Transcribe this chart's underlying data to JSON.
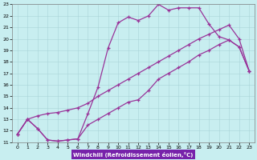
{
  "bg_color": "#c8eef0",
  "grid_color": "#a8d4d8",
  "line_color": "#993399",
  "xlabel": "Windchill (Refroidissement éolien,°C)",
  "xlabel_bg": "#7722aa",
  "xlim": [
    -0.5,
    23.5
  ],
  "ylim": [
    11,
    23
  ],
  "xticks": [
    0,
    1,
    2,
    3,
    4,
    5,
    6,
    7,
    8,
    9,
    10,
    11,
    12,
    13,
    14,
    15,
    16,
    17,
    18,
    19,
    20,
    21,
    22,
    23
  ],
  "yticks": [
    11,
    12,
    13,
    14,
    15,
    16,
    17,
    18,
    19,
    20,
    21,
    22,
    23
  ],
  "line1_x": [
    0,
    1,
    2,
    3,
    4,
    5,
    6,
    7,
    8,
    9,
    10,
    11,
    12,
    13,
    14,
    15,
    16,
    17,
    18,
    19,
    20,
    21,
    22,
    23
  ],
  "line1_y": [
    11.7,
    13.0,
    12.2,
    11.2,
    11.1,
    11.2,
    11.3,
    13.5,
    15.8,
    19.2,
    21.4,
    21.9,
    21.6,
    22.0,
    23.0,
    22.5,
    22.7,
    22.7,
    22.7,
    21.3,
    20.2,
    19.9,
    19.3,
    17.2
  ],
  "line2_x": [
    0,
    1,
    2,
    3,
    4,
    5,
    6,
    7,
    8,
    9,
    10,
    11,
    12,
    13,
    14,
    15,
    16,
    17,
    18,
    19,
    20,
    21,
    22,
    23
  ],
  "line2_y": [
    11.7,
    13.0,
    13.3,
    13.5,
    13.6,
    13.8,
    14.0,
    14.4,
    15.0,
    15.5,
    16.0,
    16.5,
    17.0,
    17.5,
    18.0,
    18.5,
    19.0,
    19.5,
    20.0,
    20.4,
    20.8,
    21.2,
    20.0,
    17.2
  ],
  "line3_x": [
    0,
    1,
    2,
    3,
    4,
    5,
    6,
    7,
    8,
    9,
    10,
    11,
    12,
    13,
    14,
    15,
    16,
    17,
    18,
    19,
    20,
    21,
    22,
    23
  ],
  "line3_y": [
    11.7,
    13.0,
    12.2,
    11.2,
    11.1,
    11.2,
    11.3,
    12.5,
    13.0,
    13.5,
    14.0,
    14.5,
    14.7,
    15.5,
    16.5,
    17.0,
    17.5,
    18.0,
    18.6,
    19.0,
    19.5,
    19.9,
    19.3,
    17.2
  ]
}
